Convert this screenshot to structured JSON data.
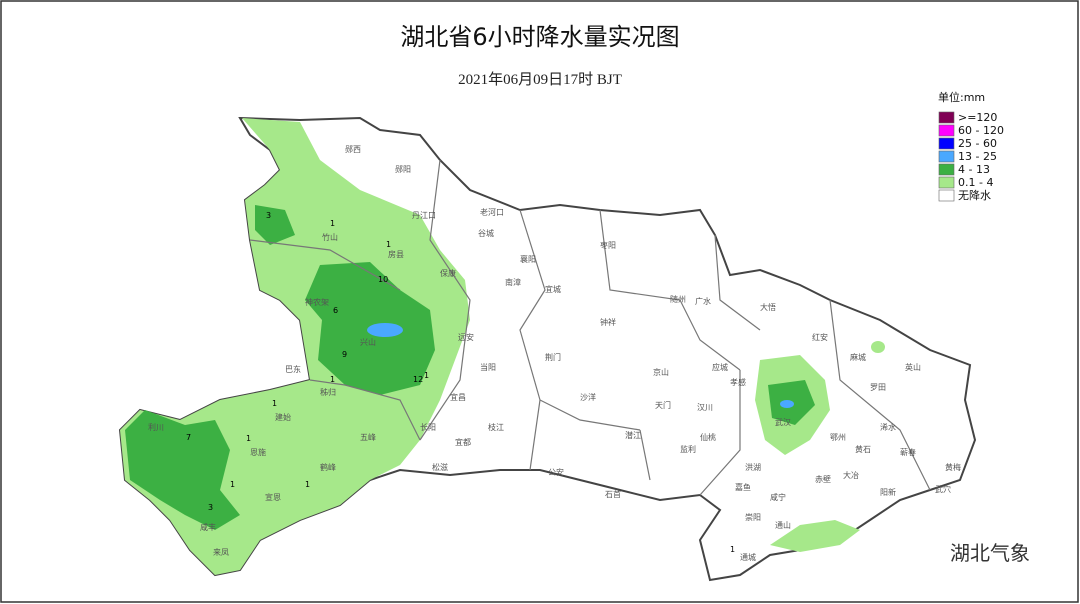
{
  "title": "湖北省6小时降水量实况图",
  "subtitle": "2021年06月09日17时   BJT",
  "legend": {
    "unit": "单位:mm",
    "items": [
      {
        "label": ">=120",
        "color": "#800055"
      },
      {
        "label": "60 - 120",
        "color": "#ff00ff"
      },
      {
        "label": "25 - 60",
        "color": "#0000ff"
      },
      {
        "label": "13 - 25",
        "color": "#4aa8ff"
      },
      {
        "label": "4 - 13",
        "color": "#3cb043"
      },
      {
        "label": "0.1 - 4",
        "color": "#a6e88a"
      },
      {
        "label": "无降水",
        "color": "#ffffff"
      }
    ]
  },
  "places": [
    "郧西",
    "郧阳",
    "丹江口",
    "老河口",
    "谷城",
    "竹山",
    "房县",
    "保康",
    "南漳",
    "宜城",
    "襄阳",
    "枣阳",
    "随州",
    "广水",
    "大悟",
    "红安",
    "麻城",
    "罗田",
    "英山",
    "浠水",
    "蕲春",
    "黄梅",
    "武穴",
    "阳新",
    "大冶",
    "黄石",
    "鄂州",
    "武汉",
    "孝感",
    "汉川",
    "应城",
    "京山",
    "钟祥",
    "荆门",
    "沙洋",
    "天门",
    "仙桃",
    "潜江",
    "当阳",
    "远安",
    "宜昌",
    "长阳",
    "宜都",
    "枝江",
    "松滋",
    "公安",
    "石首",
    "监利",
    "洪湖",
    "嘉鱼",
    "赤壁",
    "咸宁",
    "崇阳",
    "通山",
    "通城",
    "恩施",
    "利川",
    "建始",
    "巴东",
    "宣恩",
    "咸丰",
    "来凤",
    "鹤峰",
    "五峰",
    "兴山",
    "秭归",
    "神农架"
  ],
  "rain_labels": [
    3,
    1,
    1,
    10,
    6,
    9,
    1,
    12,
    1,
    1,
    7,
    1,
    1,
    3,
    1,
    1
  ],
  "watermark": "湖北气象"
}
